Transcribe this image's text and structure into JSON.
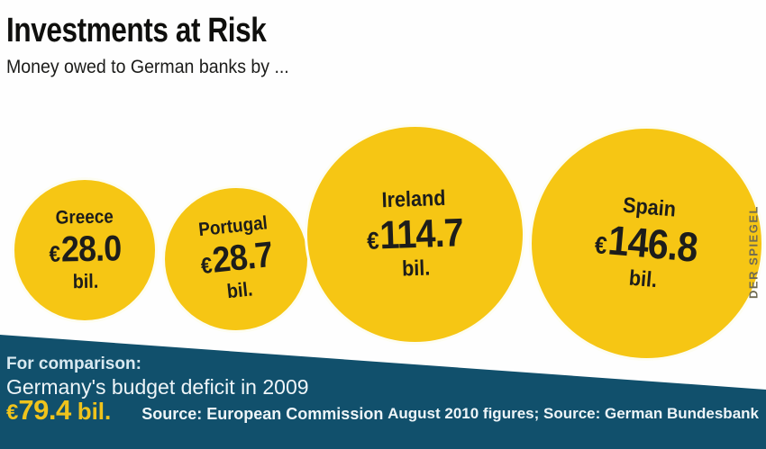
{
  "header": {
    "title": "Investments at Risk",
    "subtitle": "Money owed to German banks by ..."
  },
  "bubbles": [
    {
      "country": "Greece",
      "currency": "€",
      "amount": "28.0",
      "unit": "bil."
    },
    {
      "country": "Portugal",
      "currency": "€",
      "amount": "28.7",
      "unit": "bil."
    },
    {
      "country": "Ireland",
      "currency": "€",
      "amount": "114.7",
      "unit": "bil."
    },
    {
      "country": "Spain",
      "currency": "€",
      "amount": "146.8",
      "unit": "bil."
    }
  ],
  "comparison": {
    "label": "For comparison:",
    "line": "Germany's budget deficit in 2009",
    "currency": "€",
    "amount": "79.4",
    "unit": "bil.",
    "source": "Source: European Commission"
  },
  "footnote": "August 2010 figures; Source: German Bundesbank",
  "watermark": "DER SPIEGEL",
  "colors": {
    "bubble": "#F6C614",
    "band": "#11506C",
    "accent_value": "#EFC31C",
    "text_dark": "#1D1D1B",
    "band_text": "#E9F2F6",
    "watermark": "#6F6A52"
  },
  "chart_data": {
    "type": "bubble",
    "title": "Investments at Risk",
    "subtitle": "Money owed to German banks by ...",
    "categories": [
      "Greece",
      "Portugal",
      "Ireland",
      "Spain"
    ],
    "values": [
      28.0,
      28.7,
      114.7,
      146.8
    ],
    "value_unit": "€ billion",
    "comparison": {
      "label": "Germany's budget deficit in 2009",
      "value": 79.4,
      "unit": "€ billion",
      "source": "European Commission"
    },
    "data_source": "German Bundesbank, August 2010 figures",
    "layout": "proportional circles left-to-right, labels inside circles, dark band footer with diagonal top edge"
  }
}
